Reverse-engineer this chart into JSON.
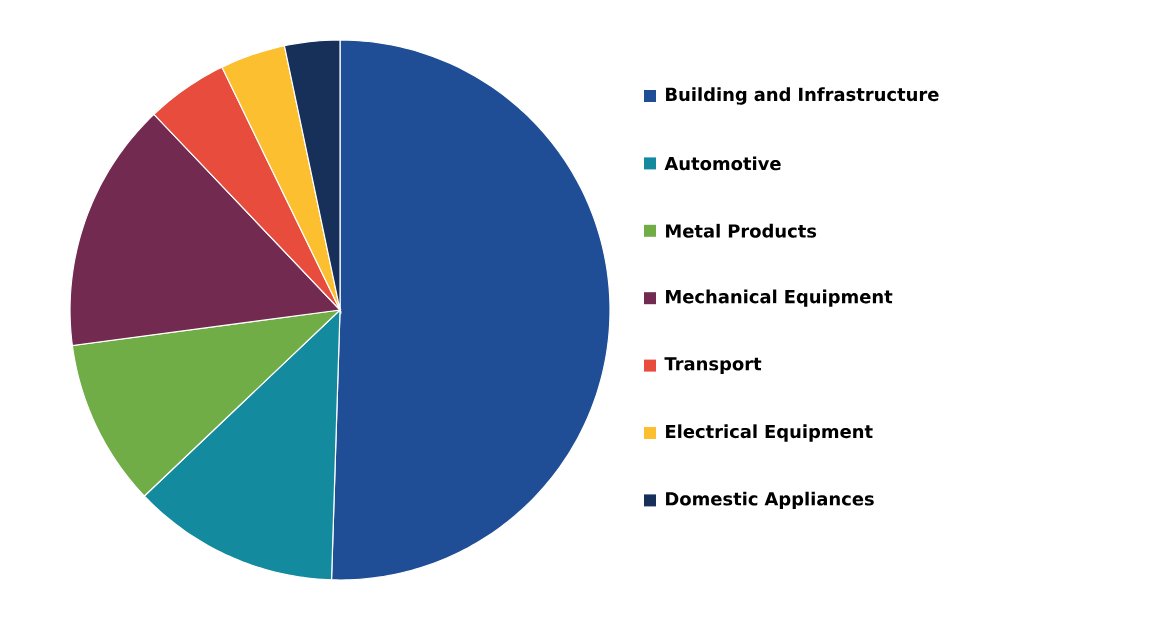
{
  "chart_data": {
    "type": "pie",
    "categories": [
      "Building and Infrastructure",
      "Automotive",
      "Metal Products",
      "Mechanical Equipment",
      "Transport",
      "Electrical Equipment",
      "Domestic Appliances"
    ],
    "values": [
      50.5,
      12.4,
      10,
      15,
      4.9,
      3.9,
      3.3
    ],
    "colors": [
      "#1f4e96",
      "#138a9e",
      "#70ad47",
      "#722a50",
      "#e84c3d",
      "#fbbf2f",
      "#17305a"
    ],
    "legend": "right"
  }
}
